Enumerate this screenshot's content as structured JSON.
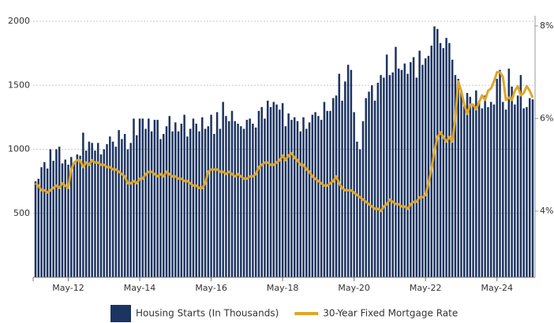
{
  "chart_data": {
    "type": "bar-line",
    "categories": [
      null,
      null,
      null,
      null,
      null,
      null,
      null,
      null,
      null,
      null,
      null,
      "May-12",
      null,
      null,
      null,
      null,
      null,
      null,
      null,
      null,
      null,
      null,
      null,
      null,
      null,
      null,
      null,
      null,
      null,
      null,
      null,
      null,
      null,
      null,
      null,
      "May-14",
      null,
      null,
      null,
      null,
      null,
      null,
      null,
      null,
      null,
      null,
      null,
      null,
      null,
      null,
      null,
      null,
      null,
      null,
      null,
      null,
      null,
      null,
      null,
      "May-16",
      null,
      null,
      null,
      null,
      null,
      null,
      null,
      null,
      null,
      null,
      null,
      null,
      null,
      null,
      null,
      null,
      null,
      null,
      null,
      null,
      null,
      null,
      null,
      "May-18",
      null,
      null,
      null,
      null,
      null,
      null,
      null,
      null,
      null,
      null,
      null,
      null,
      null,
      null,
      null,
      null,
      null,
      null,
      null,
      null,
      null,
      null,
      null,
      "May-20",
      null,
      null,
      null,
      null,
      null,
      null,
      null,
      null,
      null,
      null,
      null,
      null,
      null,
      null,
      null,
      null,
      null,
      null,
      null,
      null,
      null,
      null,
      null,
      "May-22",
      null,
      null,
      null,
      null,
      null,
      null,
      null,
      null,
      null,
      null,
      null,
      null,
      null,
      null,
      null,
      null,
      null,
      null,
      null,
      null,
      null,
      null,
      null,
      "May-24",
      null,
      null,
      null,
      null,
      null,
      null,
      null,
      null,
      null,
      null,
      null,
      null
    ],
    "series": [
      {
        "name": "Housing Starts (In Thousands)",
        "type": "bar",
        "color": "#1c3461",
        "values": [
          750,
          770,
          860,
          900,
          850,
          1000,
          910,
          1000,
          1020,
          890,
          920,
          880,
          940,
          900,
          960,
          950,
          1130,
          990,
          1060,
          1050,
          990,
          1050,
          960,
          1000,
          1040,
          1100,
          1060,
          1020,
          1150,
          1080,
          1120,
          1000,
          1050,
          1240,
          1110,
          1240,
          1240,
          1160,
          1240,
          1140,
          1230,
          1230,
          1080,
          1120,
          1180,
          1260,
          1140,
          1210,
          1140,
          1200,
          1270,
          1100,
          1160,
          1240,
          1200,
          1140,
          1250,
          1160,
          1180,
          1270,
          1120,
          1290,
          1160,
          1370,
          1260,
          1220,
          1300,
          1220,
          1200,
          1180,
          1160,
          1230,
          1240,
          1200,
          1170,
          1300,
          1330,
          1240,
          1380,
          1330,
          1370,
          1350,
          1310,
          1360,
          1180,
          1280,
          1230,
          1250,
          1220,
          1140,
          1250,
          1160,
          1210,
          1270,
          1290,
          1260,
          1230,
          1370,
          1300,
          1300,
          1400,
          1420,
          1590,
          1380,
          1530,
          1660,
          1620,
          1290,
          1060,
          1000,
          1220,
          1400,
          1450,
          1500,
          1380,
          1520,
          1580,
          1560,
          1740,
          1580,
          1600,
          1800,
          1630,
          1620,
          1670,
          1590,
          1680,
          1720,
          1560,
          1770,
          1660,
          1710,
          1730,
          1810,
          1960,
          1940,
          1830,
          1790,
          1870,
          1830,
          1700,
          1580,
          1550,
          1460,
          1340,
          1440,
          1410,
          1340,
          1460,
          1380,
          1320,
          1420,
          1330,
          1370,
          1350,
          1550,
          1620,
          1370,
          1310,
          1630,
          1490,
          1350,
          1420,
          1580,
          1320,
          1330,
          1400,
          1390
        ]
      },
      {
        "name": "30-Year Fixed Mortgage Rate",
        "type": "line",
        "axis": "y2",
        "color": "#e0a628",
        "values": [
          4.6,
          4.55,
          4.45,
          4.45,
          4.4,
          4.45,
          4.5,
          4.55,
          4.5,
          4.6,
          4.55,
          4.5,
          4.9,
          5.05,
          5.1,
          5.1,
          4.95,
          5.05,
          5.0,
          5.1,
          5.05,
          5.05,
          5.0,
          5.0,
          4.95,
          4.95,
          4.9,
          4.9,
          4.85,
          4.8,
          4.75,
          4.6,
          4.6,
          4.65,
          4.6,
          4.7,
          4.7,
          4.8,
          4.85,
          4.85,
          4.8,
          4.75,
          4.8,
          4.75,
          4.85,
          4.8,
          4.75,
          4.75,
          4.7,
          4.7,
          4.65,
          4.65,
          4.6,
          4.55,
          4.55,
          4.5,
          4.5,
          4.6,
          4.85,
          4.9,
          4.9,
          4.9,
          4.85,
          4.85,
          4.8,
          4.85,
          4.8,
          4.75,
          4.8,
          4.75,
          4.7,
          4.7,
          4.75,
          4.75,
          4.8,
          4.95,
          5.0,
          5.05,
          5.05,
          5.0,
          5.0,
          5.05,
          5.1,
          5.2,
          5.1,
          5.2,
          5.25,
          5.15,
          5.1,
          5.0,
          5.0,
          4.9,
          4.85,
          4.75,
          4.7,
          4.65,
          4.6,
          4.55,
          4.55,
          4.6,
          4.65,
          4.75,
          4.6,
          4.5,
          4.45,
          4.45,
          4.45,
          4.4,
          4.35,
          4.3,
          4.25,
          4.2,
          4.15,
          4.1,
          4.05,
          4.05,
          4.0,
          4.1,
          4.15,
          4.25,
          4.2,
          4.15,
          4.15,
          4.1,
          4.1,
          4.05,
          4.15,
          4.2,
          4.2,
          4.3,
          4.3,
          4.35,
          4.6,
          4.9,
          5.3,
          5.6,
          5.7,
          5.6,
          5.5,
          5.6,
          5.5,
          6.0,
          6.8,
          6.6,
          6.3,
          6.1,
          6.3,
          6.3,
          6.2,
          6.35,
          6.5,
          6.4,
          6.6,
          6.65,
          6.8,
          7.0,
          7.0,
          6.9,
          6.4,
          6.45,
          6.4,
          6.6,
          6.7,
          6.5,
          6.55,
          6.7,
          6.6,
          6.45
        ]
      }
    ],
    "ylim": [
      0,
      2000
    ],
    "yticks": [
      500,
      1000,
      1500,
      2000
    ],
    "y2lim": [
      2.57,
      8.1
    ],
    "y2ticks": [
      {
        "value": 4,
        "label": "4%"
      },
      {
        "value": 6,
        "label": "6%"
      },
      {
        "value": 8,
        "label": "8%"
      }
    ],
    "grid": true,
    "legend": "bottom"
  }
}
